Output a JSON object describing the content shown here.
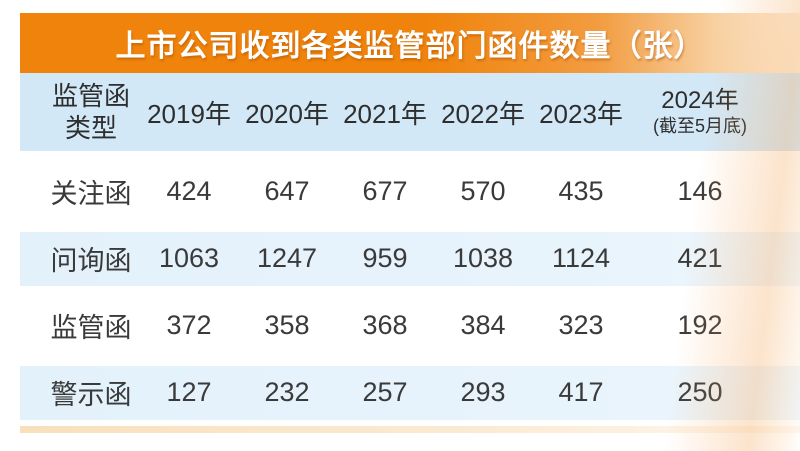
{
  "chart_data": {
    "type": "table",
    "title": "上市公司收到各类监管部门函件数量（张）",
    "columns": [
      "监管函类型",
      "2019年",
      "2020年",
      "2021年",
      "2022年",
      "2023年",
      "2024年(截至5月底)"
    ],
    "rows": [
      {
        "label": "关注函",
        "values": [
          424,
          647,
          677,
          570,
          435,
          146
        ]
      },
      {
        "label": "问询函",
        "values": [
          1063,
          1247,
          959,
          1038,
          1124,
          421
        ]
      },
      {
        "label": "监管函",
        "values": [
          372,
          358,
          368,
          384,
          323,
          192
        ]
      },
      {
        "label": "警示函",
        "values": [
          127,
          232,
          257,
          293,
          417,
          250
        ]
      }
    ]
  },
  "header_display": {
    "type_line1": "监管函",
    "type_line2": "类型",
    "years": [
      "2019年",
      "2020年",
      "2021年",
      "2022年",
      "2023年"
    ],
    "year_2024": "2024年",
    "year_2024_note": "(截至5月底)"
  },
  "colors": {
    "banner_orange": "#F0830B",
    "header_blue": "#D3E8F7",
    "row_blue": "#E6F2FB",
    "accent_strip": "#F9E0BC",
    "title_text": "#FFFFFF",
    "body_text": "#3A3A3A"
  }
}
